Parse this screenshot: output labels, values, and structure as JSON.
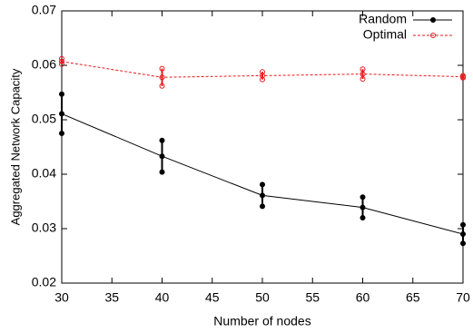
{
  "chart_data": {
    "type": "line",
    "xlabel": "Number of nodes",
    "ylabel": "Aggregated Network Capacity",
    "x": [
      30,
      40,
      50,
      60,
      70
    ],
    "series": [
      {
        "name": "Random",
        "color": "#000000",
        "dash": false,
        "marker": "filled",
        "values": [
          0.0511,
          0.0433,
          0.0361,
          0.0339,
          0.029
        ],
        "errors": [
          0.0036,
          0.0029,
          0.002,
          0.0019,
          0.0017
        ]
      },
      {
        "name": "Optimal",
        "color": "#e8191c",
        "dash": true,
        "marker": "open",
        "values": [
          0.0607,
          0.0578,
          0.0581,
          0.0584,
          0.0579
        ],
        "errors": [
          0.0005,
          0.0016,
          0.0007,
          0.0009,
          0.0002
        ]
      }
    ],
    "xlim": [
      30,
      70
    ],
    "xticks": [
      30,
      35,
      40,
      45,
      50,
      55,
      60,
      65,
      70
    ],
    "ylim": [
      0.02,
      0.07
    ],
    "yticks": [
      0.02,
      0.03,
      0.04,
      0.05,
      0.06,
      0.07
    ],
    "grid": false,
    "legend": "top-right"
  }
}
